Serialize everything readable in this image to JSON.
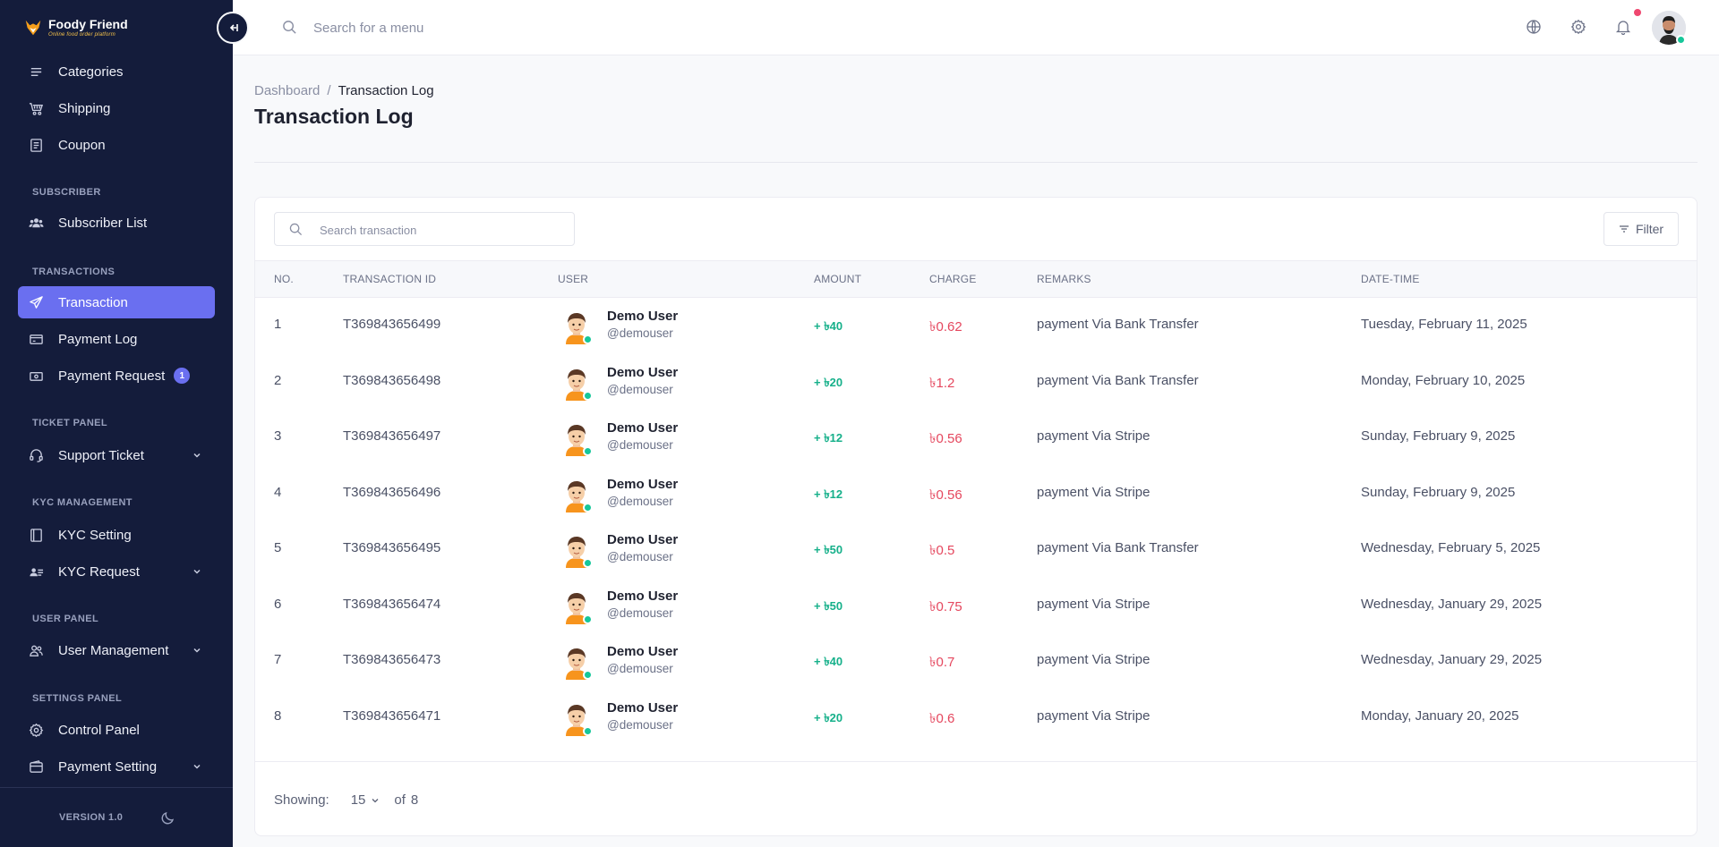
{
  "brand": {
    "name": "Foody Friend",
    "tagline": "Online food order platform"
  },
  "sidebar": {
    "items": [
      {
        "label": "Categories",
        "icon": "list-icon"
      },
      {
        "label": "Shipping",
        "icon": "truck-icon"
      },
      {
        "label": "Coupon",
        "icon": "receipt-icon"
      },
      {
        "label": "Subscriber List",
        "icon": "users-icon"
      },
      {
        "label": "Transaction",
        "icon": "send-icon",
        "active": true
      },
      {
        "label": "Payment Log",
        "icon": "card-icon"
      },
      {
        "label": "Payment Request",
        "icon": "money-icon",
        "badge": "1"
      },
      {
        "label": "Support Ticket",
        "icon": "headset-icon",
        "expandable": true
      },
      {
        "label": "KYC Setting",
        "icon": "document-icon"
      },
      {
        "label": "KYC Request",
        "icon": "user-card-icon",
        "expandable": true
      },
      {
        "label": "User Management",
        "icon": "user-group-icon",
        "expandable": true
      },
      {
        "label": "Control Panel",
        "icon": "gear-icon"
      },
      {
        "label": "Payment Setting",
        "icon": "wallet-icon",
        "expandable": true
      }
    ],
    "sections": {
      "subscriber": "SUBSCRIBER",
      "transactions": "TRANSACTIONS",
      "ticket": "TICKET PANEL",
      "kyc": "KYC MANAGEMENT",
      "user": "USER PANEL",
      "settings": "SETTINGS PANEL"
    },
    "version": "VERSION 1.0"
  },
  "topbar": {
    "search_placeholder": "Search for a menu"
  },
  "breadcrumb": {
    "root": "Dashboard",
    "separator": "/",
    "current": "Transaction Log"
  },
  "page": {
    "title": "Transaction Log"
  },
  "table": {
    "search_placeholder": "Search transaction",
    "filter_label": "Filter",
    "headers": {
      "no": "NO.",
      "id": "TRANSACTION ID",
      "user": "USER",
      "amount": "AMOUNT",
      "charge": "CHARGE",
      "remarks": "REMARKS",
      "date": "DATE-TIME"
    },
    "rows": [
      {
        "no": "1",
        "id": "T369843656499",
        "name": "Demo User",
        "handle": "@demouser",
        "amount": "+ ৳40",
        "charge": "৳0.62",
        "remarks": "payment Via Bank Transfer",
        "date": "Tuesday, February 11, 2025"
      },
      {
        "no": "2",
        "id": "T369843656498",
        "name": "Demo User",
        "handle": "@demouser",
        "amount": "+ ৳20",
        "charge": "৳1.2",
        "remarks": "payment Via Bank Transfer",
        "date": "Monday, February 10, 2025"
      },
      {
        "no": "3",
        "id": "T369843656497",
        "name": "Demo User",
        "handle": "@demouser",
        "amount": "+ ৳12",
        "charge": "৳0.56",
        "remarks": "payment Via Stripe",
        "date": "Sunday, February 9, 2025"
      },
      {
        "no": "4",
        "id": "T369843656496",
        "name": "Demo User",
        "handle": "@demouser",
        "amount": "+ ৳12",
        "charge": "৳0.56",
        "remarks": "payment Via Stripe",
        "date": "Sunday, February 9, 2025"
      },
      {
        "no": "5",
        "id": "T369843656495",
        "name": "Demo User",
        "handle": "@demouser",
        "amount": "+ ৳50",
        "charge": "৳0.5",
        "remarks": "payment Via Bank Transfer",
        "date": "Wednesday, February 5, 2025"
      },
      {
        "no": "6",
        "id": "T369843656474",
        "name": "Demo User",
        "handle": "@demouser",
        "amount": "+ ৳50",
        "charge": "৳0.75",
        "remarks": "payment Via Stripe",
        "date": "Wednesday, January 29, 2025"
      },
      {
        "no": "7",
        "id": "T369843656473",
        "name": "Demo User",
        "handle": "@demouser",
        "amount": "+ ৳40",
        "charge": "৳0.7",
        "remarks": "payment Via Stripe",
        "date": "Wednesday, January 29, 2025"
      },
      {
        "no": "8",
        "id": "T369843656471",
        "name": "Demo User",
        "handle": "@demouser",
        "amount": "+ ৳20",
        "charge": "৳0.6",
        "remarks": "payment Via Stripe",
        "date": "Monday, January 20, 2025"
      }
    ]
  },
  "pagination": {
    "showing_label": "Showing:",
    "page_size": "15",
    "of_label": "of",
    "total": "8"
  },
  "colors": {
    "sidebar_bg": "#141c3b",
    "accent": "#6a6ff0",
    "amount": "#16b08a",
    "charge": "#e5475e",
    "online": "#16c79a",
    "notification": "#ef476f"
  }
}
